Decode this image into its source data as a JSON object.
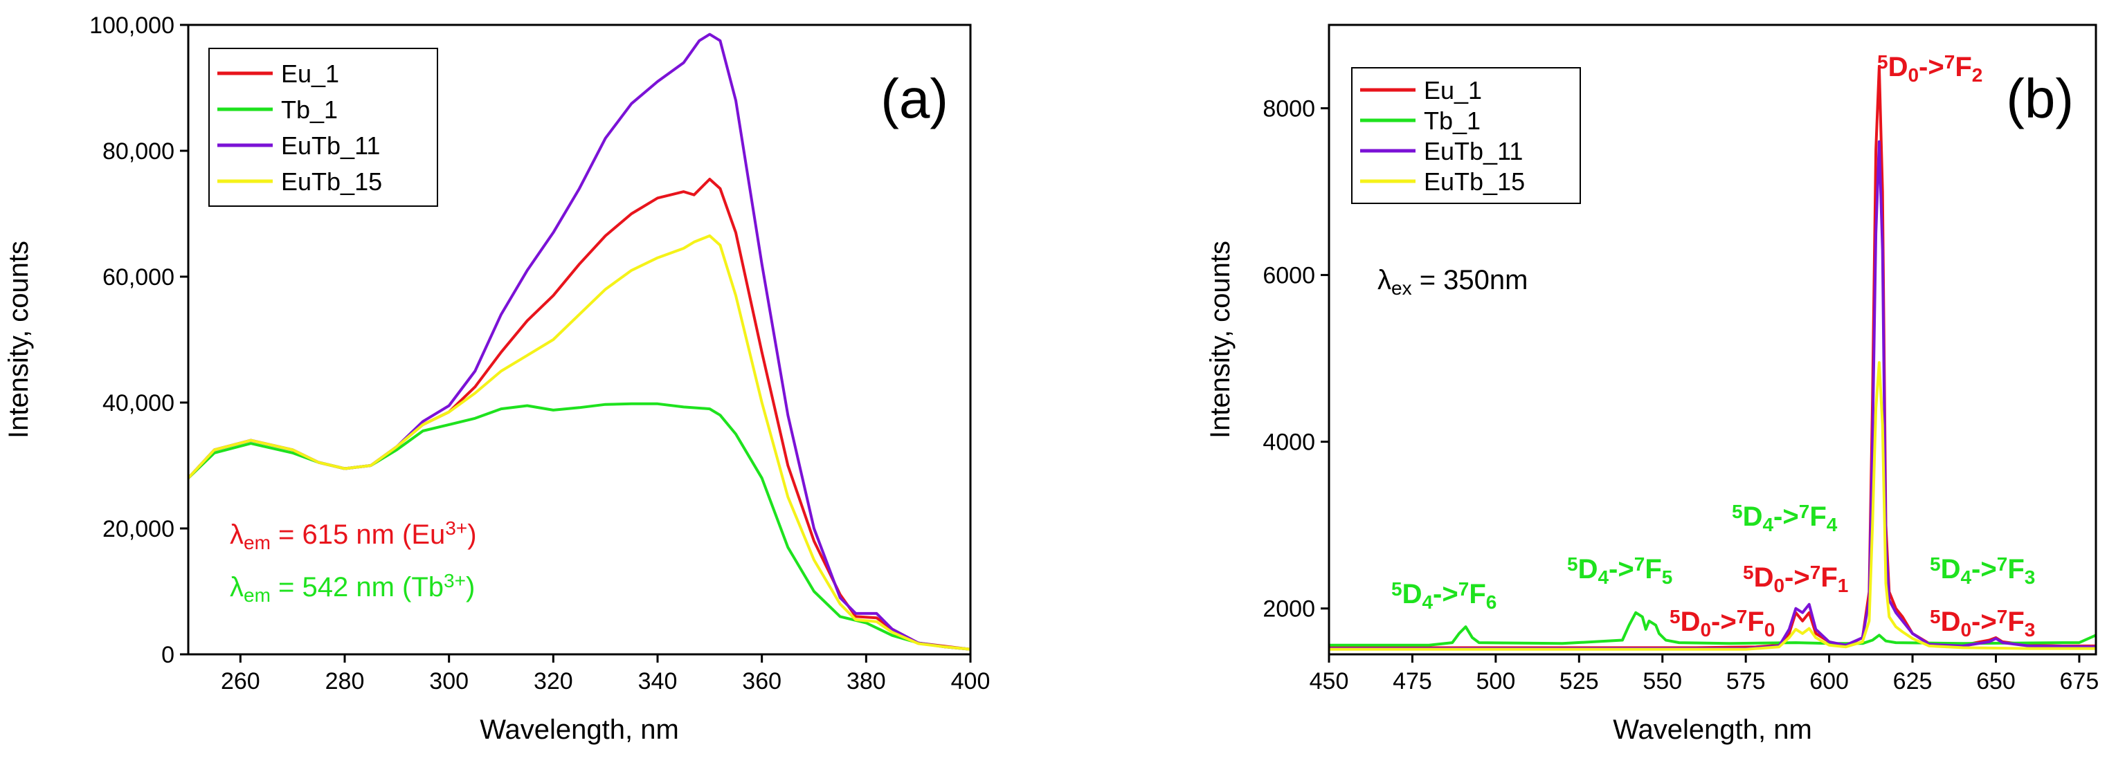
{
  "chart_data": [
    {
      "type": "line",
      "panel_label": "(a)",
      "xlabel": "Wavelength, nm",
      "ylabel": "Intensity, counts",
      "xlim": [
        250,
        400
      ],
      "ylim": [
        0,
        100000
      ],
      "xticks": [
        260,
        280,
        300,
        320,
        340,
        360,
        380,
        400
      ],
      "yticks": [
        0,
        20000,
        40000,
        60000,
        80000,
        100000
      ],
      "ytick_labels": [
        "0",
        "20,000",
        "40,000",
        "60,000",
        "80,000",
        "100,000"
      ],
      "legend_position": "top-left",
      "series": [
        {
          "name": "Eu_1",
          "color": "#e8141c",
          "x": [
            250,
            255,
            262,
            270,
            275,
            280,
            285,
            290,
            295,
            300,
            305,
            310,
            315,
            320,
            325,
            330,
            335,
            340,
            345,
            347,
            350,
            352,
            355,
            360,
            365,
            370,
            375,
            378,
            382,
            385,
            390,
            395,
            400
          ],
          "y": [
            28000,
            32500,
            34000,
            32500,
            30500,
            29500,
            30000,
            33000,
            36500,
            38500,
            42500,
            48000,
            53000,
            57000,
            62000,
            66500,
            70000,
            72500,
            73500,
            73000,
            75500,
            74000,
            67000,
            48000,
            30000,
            18000,
            9500,
            6000,
            5800,
            4000,
            1800,
            1300,
            800
          ]
        },
        {
          "name": "Tb_1",
          "color": "#1ee21e",
          "x": [
            250,
            255,
            262,
            270,
            275,
            280,
            285,
            290,
            295,
            300,
            305,
            310,
            315,
            320,
            325,
            330,
            335,
            340,
            345,
            350,
            352,
            355,
            360,
            365,
            370,
            375,
            380,
            385,
            390,
            395,
            400
          ],
          "y": [
            28000,
            32000,
            33500,
            32000,
            30500,
            29500,
            30000,
            32500,
            35500,
            36500,
            37500,
            39000,
            39500,
            38800,
            39200,
            39700,
            39800,
            39800,
            39300,
            39000,
            38000,
            35000,
            28000,
            17000,
            10000,
            6000,
            5000,
            3000,
            1800,
            1200,
            800
          ]
        },
        {
          "name": "EuTb_11",
          "color": "#7b12d6",
          "x": [
            250,
            255,
            262,
            270,
            275,
            280,
            285,
            290,
            295,
            300,
            305,
            310,
            315,
            320,
            325,
            330,
            335,
            340,
            345,
            348,
            350,
            352,
            355,
            360,
            365,
            370,
            375,
            378,
            382,
            385,
            390,
            395,
            400
          ],
          "y": [
            28000,
            32500,
            34000,
            32500,
            30500,
            29500,
            30000,
            33000,
            37000,
            39500,
            45000,
            54000,
            61000,
            67000,
            74000,
            82000,
            87500,
            91000,
            94000,
            97500,
            98500,
            97500,
            88000,
            62000,
            38000,
            20000,
            9000,
            6500,
            6500,
            4000,
            1800,
            1200,
            800
          ]
        },
        {
          "name": "EuTb_15",
          "color": "#f5f219",
          "x": [
            250,
            255,
            262,
            270,
            275,
            280,
            285,
            290,
            295,
            300,
            305,
            310,
            315,
            320,
            325,
            330,
            335,
            340,
            345,
            347,
            350,
            352,
            355,
            360,
            365,
            370,
            375,
            378,
            382,
            385,
            390,
            395,
            400
          ],
          "y": [
            28000,
            32500,
            34000,
            32500,
            30500,
            29500,
            30000,
            33000,
            36500,
            38500,
            41500,
            45000,
            47500,
            50000,
            54000,
            58000,
            61000,
            63000,
            64500,
            65500,
            66500,
            65000,
            57000,
            40000,
            25000,
            15000,
            8000,
            5500,
            5200,
            3500,
            1700,
            1200,
            800
          ]
        }
      ],
      "annotations": [
        {
          "lead": "λ",
          "sub": "em",
          "text": " =  615 nm (Eu",
          "sup": "3+",
          "tail": ")",
          "color": "#e8141c"
        },
        {
          "lead": "λ",
          "sub": "em",
          "text": " = 542 nm (Tb",
          "sup": "3+",
          "tail": ")",
          "color": "#1ee21e"
        }
      ]
    },
    {
      "type": "line",
      "panel_label": "(b)",
      "xlabel": "Wavelength, nm",
      "ylabel": "Intensity, counts",
      "xlim": [
        450,
        680
      ],
      "ylim": [
        1450,
        9000
      ],
      "xticks": [
        450,
        475,
        500,
        525,
        550,
        575,
        600,
        625,
        650,
        675
      ],
      "yticks": [
        2000,
        4000,
        6000,
        8000
      ],
      "ytick_labels": [
        "2000",
        "4000",
        "6000",
        "8000"
      ],
      "legend_position": "top-left",
      "excitation_note": {
        "lead": "λ",
        "sub": "ex",
        "text": " = 350nm"
      },
      "series": [
        {
          "name": "Eu_1",
          "color": "#e8141c",
          "x": [
            450,
            480,
            500,
            520,
            540,
            560,
            578,
            585,
            588,
            590,
            592,
            594,
            596,
            600,
            605,
            610,
            612,
            613,
            614,
            615,
            616,
            617,
            618,
            620,
            622,
            625,
            630,
            640,
            648,
            650,
            652,
            660,
            670,
            680
          ],
          "y": [
            1530,
            1530,
            1530,
            1530,
            1530,
            1530,
            1540,
            1560,
            1700,
            1950,
            1850,
            1950,
            1700,
            1600,
            1550,
            1650,
            2200,
            4500,
            7500,
            8500,
            7000,
            3000,
            2200,
            2000,
            1900,
            1700,
            1580,
            1560,
            1620,
            1650,
            1600,
            1560,
            1550,
            1550
          ]
        },
        {
          "name": "Tb_1",
          "color": "#1ee21e",
          "x": [
            450,
            480,
            487,
            489,
            491,
            493,
            495,
            520,
            538,
            540,
            542,
            544,
            545,
            546,
            548,
            549,
            551,
            555,
            570,
            590,
            600,
            610,
            613,
            615,
            617,
            620,
            640,
            670,
            675,
            680
          ],
          "y": [
            1560,
            1560,
            1590,
            1700,
            1780,
            1650,
            1590,
            1580,
            1620,
            1800,
            1950,
            1900,
            1750,
            1850,
            1800,
            1700,
            1620,
            1590,
            1580,
            1590,
            1580,
            1580,
            1620,
            1680,
            1610,
            1590,
            1580,
            1590,
            1590,
            1680
          ]
        },
        {
          "name": "EuTb_11",
          "color": "#7b12d6",
          "x": [
            450,
            500,
            540,
            575,
            585,
            588,
            590,
            592,
            594,
            596,
            600,
            605,
            610,
            612,
            613,
            614,
            615,
            616,
            617,
            618,
            620,
            622,
            625,
            630,
            640,
            648,
            650,
            652,
            660,
            680
          ],
          "y": [
            1520,
            1520,
            1520,
            1520,
            1550,
            1750,
            2000,
            1950,
            2050,
            1750,
            1600,
            1560,
            1650,
            2100,
            4000,
            6500,
            7600,
            6300,
            2800,
            2100,
            1950,
            1850,
            1700,
            1570,
            1550,
            1600,
            1640,
            1590,
            1550,
            1540
          ]
        },
        {
          "name": "EuTb_15",
          "color": "#f5f219",
          "x": [
            450,
            500,
            540,
            575,
            585,
            588,
            590,
            592,
            594,
            596,
            600,
            605,
            610,
            612,
            613,
            614,
            615,
            616,
            617,
            618,
            620,
            622,
            625,
            630,
            640,
            660,
            680
          ],
          "y": [
            1510,
            1510,
            1510,
            1510,
            1540,
            1650,
            1750,
            1700,
            1760,
            1650,
            1560,
            1540,
            1600,
            1850,
            3000,
            4400,
            4950,
            4200,
            2300,
            1900,
            1780,
            1720,
            1640,
            1550,
            1530,
            1520,
            1520
          ]
        }
      ],
      "annotations": [
        {
          "label": "5D0->7F2",
          "parts": [
            {
              "t": "5",
              "k": "sup"
            },
            {
              "t": "D",
              "k": "n"
            },
            {
              "t": "0",
              "k": "sub"
            },
            {
              "t": "->",
              "k": "n"
            },
            {
              "t": "7",
              "k": "sup"
            },
            {
              "t": "F",
              "k": "n"
            },
            {
              "t": "2",
              "k": "sub"
            }
          ],
          "color": "#e8141c"
        },
        {
          "label": "5D4->7F6",
          "parts": [
            {
              "t": "5",
              "k": "sup"
            },
            {
              "t": "D",
              "k": "n"
            },
            {
              "t": "4",
              "k": "sub"
            },
            {
              "t": "->",
              "k": "n"
            },
            {
              "t": "7",
              "k": "sup"
            },
            {
              "t": "F",
              "k": "n"
            },
            {
              "t": "6",
              "k": "sub"
            }
          ],
          "color": "#1ee21e"
        },
        {
          "label": "5D4->7F5",
          "parts": [
            {
              "t": "5",
              "k": "sup"
            },
            {
              "t": "D",
              "k": "n"
            },
            {
              "t": "4",
              "k": "sub"
            },
            {
              "t": "->",
              "k": "n"
            },
            {
              "t": "7",
              "k": "sup"
            },
            {
              "t": "F",
              "k": "n"
            },
            {
              "t": "5",
              "k": "sub"
            }
          ],
          "color": "#1ee21e"
        },
        {
          "label": "5D0->7F0",
          "parts": [
            {
              "t": "5",
              "k": "sup"
            },
            {
              "t": "D",
              "k": "n"
            },
            {
              "t": "0",
              "k": "sub"
            },
            {
              "t": "->",
              "k": "n"
            },
            {
              "t": "7",
              "k": "sup"
            },
            {
              "t": "F",
              "k": "n"
            },
            {
              "t": "0",
              "k": "sub"
            }
          ],
          "color": "#e8141c"
        },
        {
          "label": "5D4->7F4",
          "parts": [
            {
              "t": "5",
              "k": "sup"
            },
            {
              "t": "D",
              "k": "n"
            },
            {
              "t": "4",
              "k": "sub"
            },
            {
              "t": "->",
              "k": "n"
            },
            {
              "t": "7",
              "k": "sup"
            },
            {
              "t": "F",
              "k": "n"
            },
            {
              "t": "4",
              "k": "sub"
            }
          ],
          "color": "#1ee21e"
        },
        {
          "label": "5D0->7F1",
          "parts": [
            {
              "t": "5",
              "k": "sup"
            },
            {
              "t": "D",
              "k": "n"
            },
            {
              "t": "0",
              "k": "sub"
            },
            {
              "t": "->",
              "k": "n"
            },
            {
              "t": "7",
              "k": "sup"
            },
            {
              "t": "F",
              "k": "n"
            },
            {
              "t": "1",
              "k": "sub"
            }
          ],
          "color": "#e8141c"
        },
        {
          "label": "5D4->7F3",
          "parts": [
            {
              "t": "5",
              "k": "sup"
            },
            {
              "t": "D",
              "k": "n"
            },
            {
              "t": "4",
              "k": "sub"
            },
            {
              "t": "->",
              "k": "n"
            },
            {
              "t": "7",
              "k": "sup"
            },
            {
              "t": "F",
              "k": "n"
            },
            {
              "t": "3",
              "k": "sub"
            }
          ],
          "color": "#1ee21e"
        },
        {
          "label": "5D0->7F3",
          "parts": [
            {
              "t": "5",
              "k": "sup"
            },
            {
              "t": "D",
              "k": "n"
            },
            {
              "t": "0",
              "k": "sub"
            },
            {
              "t": "->",
              "k": "n"
            },
            {
              "t": "7",
              "k": "sup"
            },
            {
              "t": "F",
              "k": "n"
            },
            {
              "t": "3",
              "k": "sub"
            }
          ],
          "color": "#e8141c"
        }
      ]
    }
  ]
}
